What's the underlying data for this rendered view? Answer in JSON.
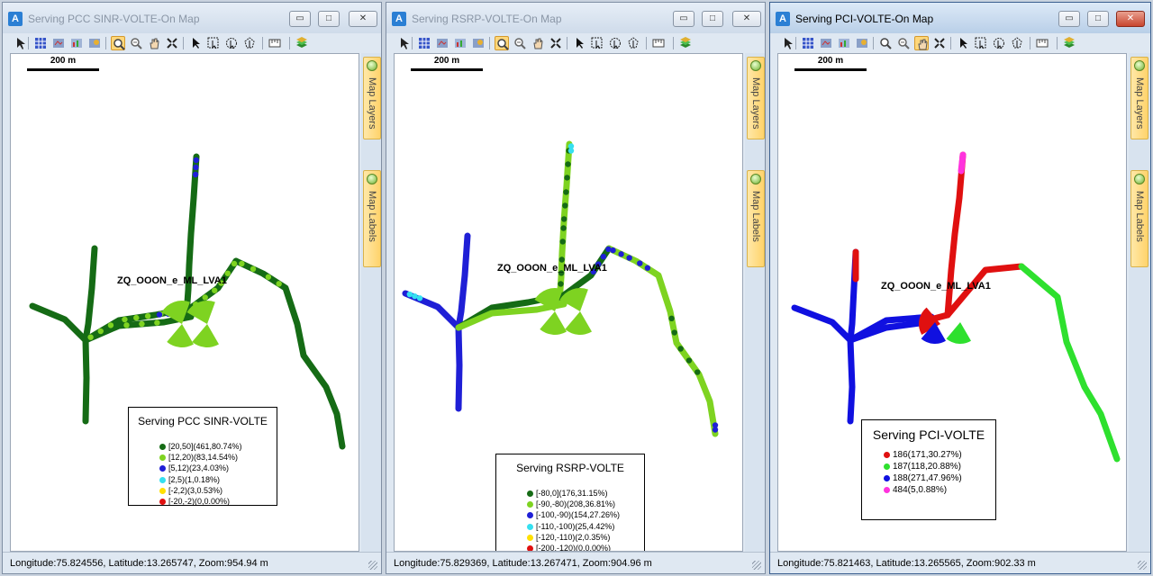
{
  "windows": [
    {
      "title": "Serving PCC SINR-VOLTE-On Map",
      "active": false,
      "scale_label": "200 m",
      "site_label": "ZQ_OOON_e_ML_LVA1",
      "legend": {
        "title": "Serving PCC SINR-VOLTE",
        "items": [
          {
            "label": "[20,50](461,80.74%)",
            "color": "#156b15"
          },
          {
            "label": "[12,20)(83,14.54%)",
            "color": "#7ed321"
          },
          {
            "label": "[5,12)(23,4.03%)",
            "color": "#1f1fd6"
          },
          {
            "label": "[2,5)(1,0.18%)",
            "color": "#35e0f0"
          },
          {
            "label": "[-2,2)(3,0.53%)",
            "color": "#ffe000"
          },
          {
            "label": "[-20,-2)(0,0.00%)",
            "color": "#e01010"
          }
        ]
      },
      "status": "Longitude:75.824556, Latitude:13.265747, Zoom:954.94 m",
      "sidebar": {
        "layers": "Map Layers",
        "labels": "Map Labels"
      }
    },
    {
      "title": "Serving RSRP-VOLTE-On Map",
      "active": false,
      "scale_label": "200 m",
      "site_label": "ZQ_OOON_e_ML_LVA1",
      "legend": {
        "title": "Serving RSRP-VOLTE",
        "items": [
          {
            "label": "[-80,0](176,31.15%)",
            "color": "#156b15"
          },
          {
            "label": "[-90,-80)(208,36.81%)",
            "color": "#7ed321"
          },
          {
            "label": "[-100,-90)(154,27.26%)",
            "color": "#1f1fd6"
          },
          {
            "label": "[-110,-100)(25,4.42%)",
            "color": "#35e0f0"
          },
          {
            "label": "[-120,-110)(2,0.35%)",
            "color": "#ffe000"
          },
          {
            "label": "[-200,-120)(0,0.00%)",
            "color": "#e01010"
          }
        ]
      },
      "status": "Longitude:75.829369, Latitude:13.267471, Zoom:904.96 m",
      "sidebar": {
        "layers": "Map Layers",
        "labels": "Map Labels"
      }
    },
    {
      "title": "Serving PCI-VOLTE-On Map",
      "active": true,
      "scale_label": "200 m",
      "site_label": "ZQ_OOON_e_ML_LVA1",
      "legend": {
        "title": "Serving PCI-VOLTE",
        "items": [
          {
            "label": "186(171,30.27%)",
            "color": "#e01010"
          },
          {
            "label": "187(118,20.88%)",
            "color": "#2ee02e"
          },
          {
            "label": "188(271,47.96%)",
            "color": "#1010e0"
          },
          {
            "label": "484(5,0.88%)",
            "color": "#ff33dd"
          }
        ]
      },
      "status": "Longitude:75.821463, Latitude:13.265565, Zoom:902.33 m",
      "sidebar": {
        "layers": "Map Layers",
        "labels": "Map Labels"
      }
    }
  ],
  "controls": {
    "minimize": "▭",
    "maximize": "□",
    "close": "✕"
  },
  "toolbar_icons": [
    "pointer-icon",
    "layer-grid-icon",
    "map-export-icon",
    "map-chart-icon",
    "map-style-icon",
    "zoom-in-icon",
    "zoom-out-icon",
    "pan-hand-icon",
    "full-extent-icon",
    "select-arrow-icon",
    "select-rect-icon",
    "select-circle-icon",
    "select-polygon-icon",
    "measure-icon",
    "layers-stack-icon"
  ],
  "colors": {
    "titlebar": "#cfdbea",
    "accent": "#2b7fd4",
    "tab": "#ffd36b"
  }
}
